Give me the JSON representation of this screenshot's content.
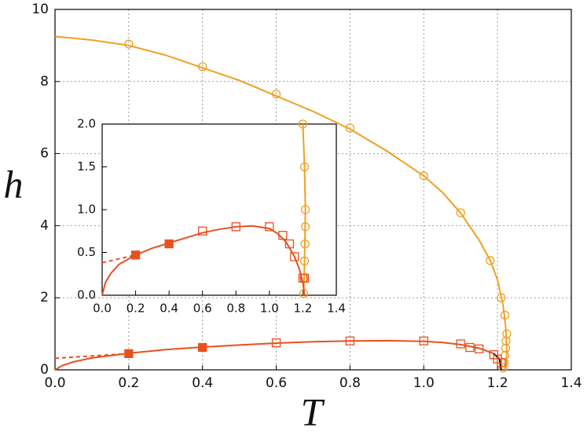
{
  "chart_data": [
    {
      "type": "scatter",
      "xlabel": "T",
      "ylabel": "h",
      "grid": true,
      "xlim": [
        0,
        1.4
      ],
      "ylim": [
        0,
        10
      ],
      "xticks": [
        {
          "value": 0,
          "label": "0.0"
        },
        0.2,
        0.4,
        0.6,
        0.8,
        {
          "value": 1,
          "label": "1.0"
        },
        1.2,
        1.4
      ],
      "yticks": [
        0,
        2,
        4,
        6,
        8,
        10
      ],
      "series": [
        {
          "color": "#f0a020",
          "marker": "line",
          "x": [
            0,
            0.1,
            0.2,
            0.3,
            0.4,
            0.5,
            0.6,
            0.7,
            0.8,
            0.9,
            1.0,
            1.05,
            1.1,
            1.15,
            1.18,
            1.2,
            1.215,
            1.222,
            1.225,
            1.224,
            1.22
          ],
          "values": [
            9.25,
            9.15,
            9.0,
            8.73,
            8.38,
            8.03,
            7.6,
            7.17,
            6.68,
            6.07,
            5.38,
            4.93,
            4.35,
            3.6,
            3.04,
            2.5,
            1.8,
            1.2,
            0.6,
            0.2,
            0
          ]
        },
        {
          "color": "#f0a020",
          "marker": "open-circle",
          "x": [
            0.2,
            0.4,
            0.6,
            0.8,
            1.0,
            1.1,
            1.18,
            1.21,
            1.22,
            1.225,
            1.223,
            1.222,
            1.22,
            1.218,
            1.215
          ],
          "values": [
            9.04,
            8.41,
            7.65,
            6.71,
            5.38,
            4.36,
            3.03,
            2.0,
            1.52,
            1.0,
            0.8,
            0.6,
            0.4,
            0.2,
            0.05
          ]
        },
        {
          "color": "#e8501e",
          "marker": "line",
          "x": [
            0,
            0.02,
            0.05,
            0.1,
            0.2,
            0.3,
            0.4,
            0.5,
            0.6,
            0.7,
            0.8,
            0.9,
            1.0,
            1.05,
            1.1,
            1.15,
            1.19
          ],
          "values": [
            0,
            0.12,
            0.22,
            0.33,
            0.46,
            0.56,
            0.63,
            0.69,
            0.74,
            0.78,
            0.8,
            0.81,
            0.79,
            0.76,
            0.7,
            0.6,
            0.45
          ]
        },
        {
          "color": "#000000",
          "marker": "line",
          "x": [
            1.19,
            1.205,
            1.21
          ],
          "values": [
            0.45,
            0.3,
            0
          ]
        },
        {
          "color": "#e8501e",
          "marker": "dashed-line",
          "x": [
            0,
            0.2
          ],
          "values": [
            0.32,
            0.45
          ]
        },
        {
          "color": "#e8501e",
          "marker": "filled-square",
          "x": [
            0.2,
            0.4
          ],
          "values": [
            0.45,
            0.62
          ]
        },
        {
          "color": "#e8501e",
          "marker": "open-square",
          "x": [
            0.6,
            0.8,
            1.0,
            1.1,
            1.125,
            1.15,
            1.19,
            1.2,
            1.21
          ],
          "values": [
            0.75,
            0.8,
            0.8,
            0.72,
            0.62,
            0.58,
            0.42,
            0.3,
            0.2
          ]
        }
      ]
    },
    {
      "type": "scatter",
      "grid": false,
      "xlim": [
        0,
        1.4
      ],
      "ylim": [
        0,
        2
      ],
      "xticks": [
        {
          "value": 0,
          "label": "0.0"
        },
        0.2,
        0.4,
        0.6,
        0.8,
        {
          "value": 1,
          "label": "1.0"
        },
        1.2,
        1.4
      ],
      "yticks": [
        {
          "value": 0,
          "label": "0.0"
        },
        0.5,
        {
          "value": 1,
          "label": "1.0"
        },
        1.5,
        {
          "value": 2,
          "label": "2.0"
        }
      ],
      "series": [
        {
          "color": "#f0a020",
          "marker": "line",
          "x": [
            1.205,
            1.21,
            1.215,
            1.21,
            1.2
          ],
          "values": [
            0,
            0.4,
            1.0,
            1.5,
            2.0
          ]
        },
        {
          "color": "#f0a020",
          "marker": "open-circle",
          "x": [
            1.2,
            1.21,
            1.215,
            1.215,
            1.213,
            1.21,
            1.207,
            1.205
          ],
          "values": [
            2.0,
            1.5,
            1.0,
            0.8,
            0.6,
            0.4,
            0.2,
            0.02
          ]
        },
        {
          "color": "#e8501e",
          "marker": "line",
          "x": [
            0,
            0.02,
            0.05,
            0.1,
            0.2,
            0.3,
            0.4,
            0.5,
            0.6,
            0.7,
            0.8,
            0.9,
            1.0,
            1.05,
            1.1,
            1.15,
            1.18,
            1.2,
            1.21
          ],
          "values": [
            0,
            0.15,
            0.25,
            0.36,
            0.47,
            0.55,
            0.61,
            0.67,
            0.73,
            0.77,
            0.8,
            0.81,
            0.78,
            0.72,
            0.62,
            0.45,
            0.3,
            0.15,
            0
          ]
        },
        {
          "color": "#e8501e",
          "marker": "dashed-line",
          "x": [
            0,
            0.2
          ],
          "values": [
            0.38,
            0.47
          ]
        },
        {
          "color": "#e8501e",
          "marker": "filled-square",
          "x": [
            0.2,
            0.4
          ],
          "values": [
            0.47,
            0.6
          ]
        },
        {
          "color": "#e8501e",
          "marker": "open-square",
          "x": [
            0.6,
            0.8,
            1.0,
            1.08,
            1.12,
            1.15,
            1.2,
            1.21
          ],
          "values": [
            0.75,
            0.8,
            0.8,
            0.7,
            0.6,
            0.45,
            0.2,
            0.2
          ]
        }
      ]
    }
  ]
}
